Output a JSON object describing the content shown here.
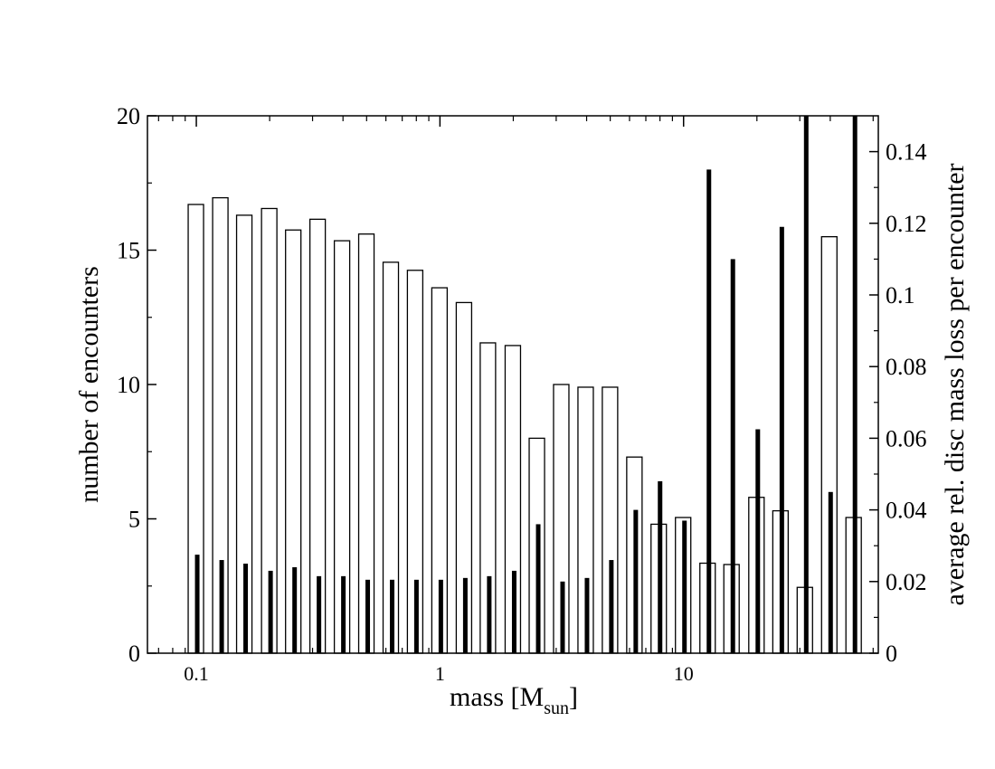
{
  "chart_data": {
    "type": "bar",
    "xlabel": "mass [M",
    "xlabel_sub": "sun",
    "xlabel_suffix": "]",
    "ylabel_left": "number of encounters",
    "ylabel_right": "average rel. disc mass loss per encounter",
    "x_scale": "log",
    "xlim": [
      0.063,
      63
    ],
    "ylim_left": [
      0,
      20
    ],
    "ylim_right": [
      0,
      0.15
    ],
    "x_tick_labels": [
      "0.1",
      "1",
      "10"
    ],
    "y_left_tick_labels": [
      "0",
      "5",
      "10",
      "15",
      "20"
    ],
    "y_right_tick_labels": [
      "0",
      "0.02",
      "0.04",
      "0.06",
      "0.08",
      "0.1",
      "0.12",
      "0.14"
    ],
    "grid": false,
    "legend": "none",
    "masses": [
      0.1,
      0.126,
      0.158,
      0.2,
      0.251,
      0.316,
      0.398,
      0.501,
      0.631,
      0.794,
      1.0,
      1.26,
      1.58,
      2.0,
      2.51,
      3.16,
      3.98,
      5.01,
      6.31,
      7.94,
      10.0,
      12.6,
      15.8,
      20.0,
      25.1,
      31.6,
      39.8,
      50.1
    ],
    "series": [
      {
        "axis": "left",
        "style": "open-bar",
        "values": [
          16.7,
          16.95,
          16.3,
          16.55,
          15.75,
          16.15,
          15.35,
          15.6,
          14.55,
          14.25,
          13.6,
          13.05,
          11.55,
          11.45,
          8.0,
          10.0,
          9.9,
          9.9,
          7.3,
          4.8,
          5.05,
          3.35,
          3.3,
          5.8,
          5.3,
          2.45,
          15.5,
          5.05
        ]
      },
      {
        "axis": "right",
        "style": "filled-bar",
        "values": [
          0.0275,
          0.026,
          0.025,
          0.023,
          0.024,
          0.0215,
          0.0215,
          0.0205,
          0.0205,
          0.0205,
          0.0205,
          0.021,
          0.0215,
          0.023,
          0.036,
          0.02,
          0.021,
          0.026,
          0.04,
          0.048,
          0.037,
          0.135,
          0.11,
          0.0625,
          0.119,
          0.155,
          0.045,
          0.155
        ]
      }
    ]
  },
  "colors": {
    "open_bar_fill": "#ffffff",
    "open_bar_stroke": "#000000",
    "filled_bar": "#000000"
  }
}
